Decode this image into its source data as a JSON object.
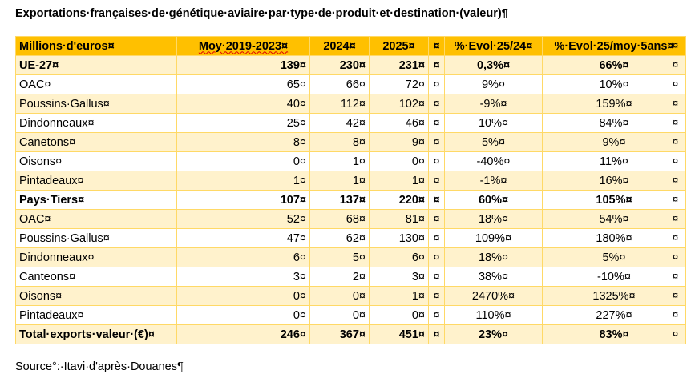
{
  "title": "Exportations·françaises·de·génétique·aviaire·par·type·de·produit·et·destination·(valeur)¶",
  "header": [
    "Millions·d'euros¤",
    "Moy·2019-2023¤",
    "2024¤",
    "2025¤",
    "¤",
    "%·Evol·25/24¤",
    "%·Evol·25/moy·5ans¤"
  ],
  "rows": [
    {
      "type": "group",
      "shade": true,
      "cells": [
        "UE-27¤",
        "139¤",
        "230¤",
        "231¤",
        "¤",
        "0,3%¤",
        "66%¤"
      ]
    },
    {
      "type": "sub",
      "shade": false,
      "cells": [
        "OAC¤",
        "65¤",
        "66¤",
        "72¤",
        "¤",
        "9%¤",
        "10%¤"
      ]
    },
    {
      "type": "sub",
      "shade": true,
      "cells": [
        "Poussins·Gallus¤",
        "40¤",
        "112¤",
        "102¤",
        "¤",
        "-9%¤",
        "159%¤"
      ]
    },
    {
      "type": "sub",
      "shade": false,
      "cells": [
        "Dindonneaux¤",
        "25¤",
        "42¤",
        "46¤",
        "¤",
        "10%¤",
        "84%¤"
      ]
    },
    {
      "type": "sub",
      "shade": true,
      "cells": [
        "Canetons¤",
        "8¤",
        "8¤",
        "9¤",
        "¤",
        "5%¤",
        "9%¤"
      ]
    },
    {
      "type": "sub",
      "shade": false,
      "cells": [
        "Oisons¤",
        "0¤",
        "1¤",
        "0¤",
        "¤",
        "-40%¤",
        "11%¤"
      ]
    },
    {
      "type": "sub",
      "shade": true,
      "cells": [
        "Pintadeaux¤",
        "1¤",
        "1¤",
        "1¤",
        "¤",
        "-1%¤",
        "16%¤"
      ]
    },
    {
      "type": "group",
      "shade": false,
      "cells": [
        "Pays·Tiers¤",
        "107¤",
        "137¤",
        "220¤",
        "¤",
        "60%¤",
        "105%¤"
      ]
    },
    {
      "type": "sub",
      "shade": true,
      "cells": [
        "OAC¤",
        "52¤",
        "68¤",
        "81¤",
        "¤",
        "18%¤",
        "54%¤"
      ]
    },
    {
      "type": "sub",
      "shade": false,
      "cells": [
        "Poussins·Gallus¤",
        "47¤",
        "62¤",
        "130¤",
        "¤",
        "109%¤",
        "180%¤"
      ]
    },
    {
      "type": "sub",
      "shade": true,
      "cells": [
        "Dindonneaux¤",
        "6¤",
        "5¤",
        "6¤",
        "¤",
        "18%¤",
        "5%¤"
      ]
    },
    {
      "type": "sub",
      "shade": false,
      "cells": [
        "Canteons¤",
        "3¤",
        "2¤",
        "3¤",
        "¤",
        "38%¤",
        "-10%¤"
      ]
    },
    {
      "type": "sub",
      "shade": true,
      "cells": [
        "Oisons¤",
        "0¤",
        "0¤",
        "1¤",
        "¤",
        "2470%¤",
        "1325%¤"
      ]
    },
    {
      "type": "sub",
      "shade": false,
      "cells": [
        "Pintadeaux¤",
        "0¤",
        "0¤",
        "0¤",
        "¤",
        "110%¤",
        "227%¤"
      ]
    },
    {
      "type": "group",
      "shade": true,
      "cells": [
        "Total·exports·valeur·(€)¤",
        "246¤",
        "367¤",
        "451¤",
        "¤",
        "23%¤",
        "83%¤"
      ]
    }
  ],
  "row_end_mark": "¤",
  "source": "Source°:·Itavi·d'après·Douanes¶"
}
